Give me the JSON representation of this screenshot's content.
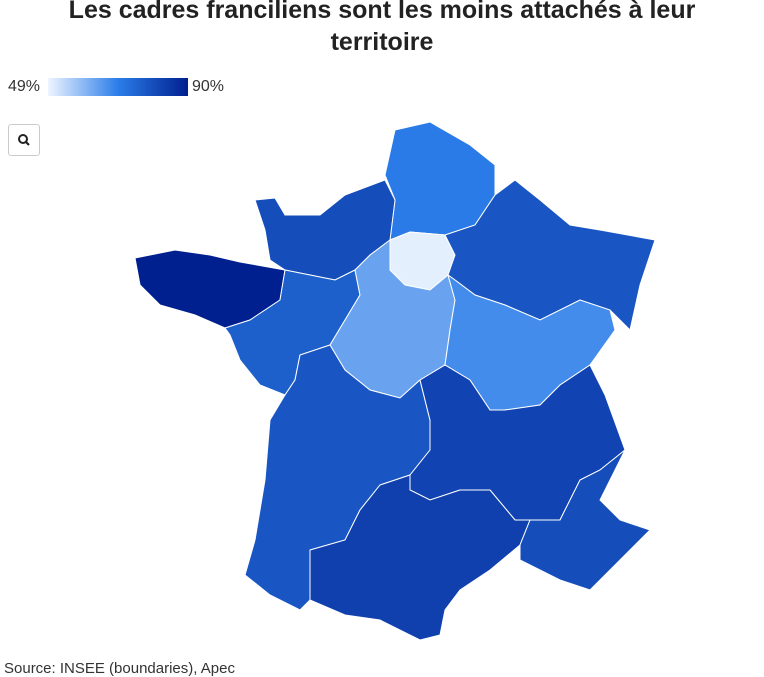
{
  "chart_data": {
    "type": "choropleth",
    "title": [
      "Les cadres franciliens sont les moins attachés à leur",
      "territoire"
    ],
    "scale": [
      {
        "value": 49,
        "label": "49%"
      },
      {
        "value": 90,
        "label": "90%"
      }
    ],
    "colors": [
      "#eef5ff",
      "#2b7de9",
      "#00208f"
    ],
    "values": [
      70,
      80,
      50,
      78,
      90,
      76,
      63,
      67,
      78,
      82,
      83,
      80
    ],
    "source": "Source: INSEE (boundaries), Apec"
  }
}
